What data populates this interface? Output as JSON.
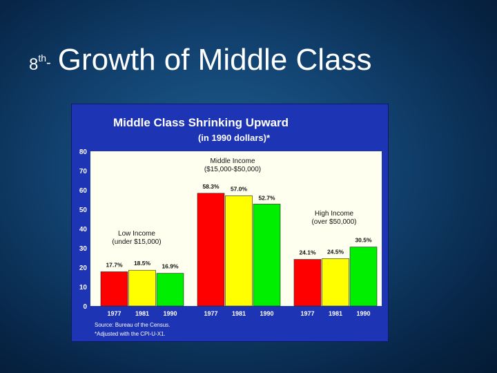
{
  "slide": {
    "number": "8",
    "superscript": "th",
    "dash": "-",
    "title": "Growth of Middle Class"
  },
  "chart_data": {
    "type": "bar",
    "title": "Middle Class Shrinking Upward",
    "subtitle": "(in 1990 dollars)*",
    "ylim": [
      0,
      80
    ],
    "yticks": [
      "0",
      "10",
      "20",
      "30",
      "40",
      "50",
      "60",
      "70",
      "80"
    ],
    "groups": [
      {
        "label": "Low Income",
        "range": "(under $15,000)",
        "categories": [
          "1977",
          "1981",
          "1990"
        ],
        "values": [
          17.7,
          18.5,
          16.9
        ],
        "value_labels": [
          "17.7%",
          "18.5%",
          "16.9%"
        ]
      },
      {
        "label": "Middle Income",
        "range": "($15,000-$50,000)",
        "categories": [
          "1977",
          "1981",
          "1990"
        ],
        "values": [
          58.3,
          57.0,
          52.7
        ],
        "value_labels": [
          "58.3%",
          "57.0%",
          "52.7%"
        ]
      },
      {
        "label": "High Income",
        "range": "(over $50,000)",
        "categories": [
          "1977",
          "1981",
          "1990"
        ],
        "values": [
          24.1,
          24.5,
          30.5
        ],
        "value_labels": [
          "24.1%",
          "24.5%",
          "30.5%"
        ]
      }
    ],
    "bar_colors": [
      "#ff0000",
      "#ffff00",
      "#00ee00"
    ],
    "plot_background": "#fffff0",
    "frame_background": "#1d34b4",
    "source": "Source: Bureau of the Census.",
    "footnote": "*Adjusted with the CPI-U-X1.",
    "grid": false,
    "legend": "none"
  }
}
